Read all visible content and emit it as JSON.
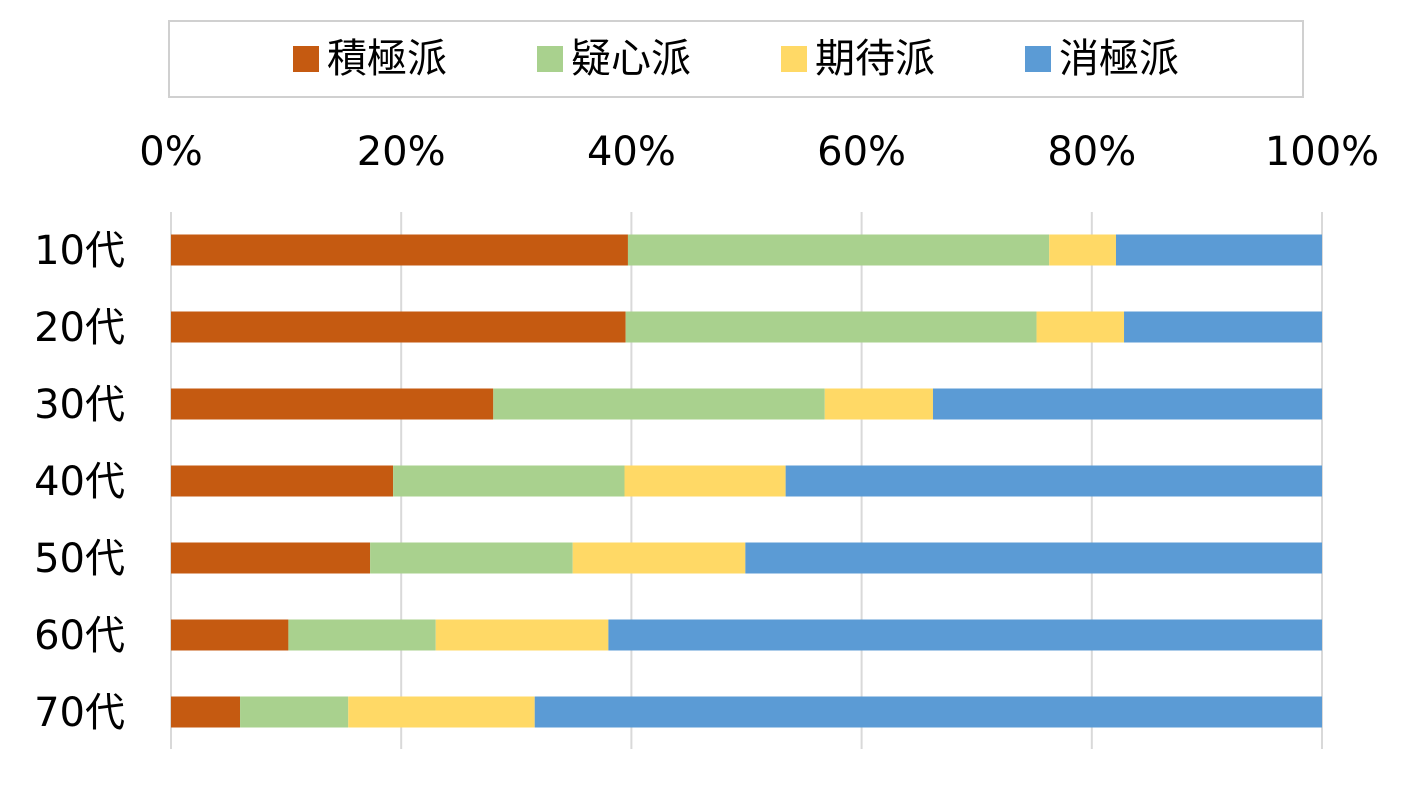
{
  "chart_data": {
    "type": "bar",
    "orientation": "horizontal",
    "stacked": true,
    "percent": true,
    "categories": [
      "10代",
      "20代",
      "30代",
      "40代",
      "50代",
      "60代",
      "70代"
    ],
    "series": [
      {
        "name": "積極派",
        "color": "#C55A11",
        "values": [
          39.7,
          39.5,
          28.0,
          19.3,
          17.3,
          10.2,
          6.0
        ]
      },
      {
        "name": "疑心派",
        "color": "#A9D18E",
        "values": [
          36.6,
          35.7,
          28.8,
          20.1,
          17.6,
          12.8,
          9.4
        ]
      },
      {
        "name": "期待派",
        "color": "#FFD966",
        "values": [
          5.8,
          7.6,
          9.4,
          14.0,
          15.0,
          15.0,
          16.2
        ]
      },
      {
        "name": "消極派",
        "color": "#5B9BD5",
        "values": [
          17.9,
          17.2,
          33.8,
          46.6,
          50.1,
          62.0,
          68.4
        ]
      }
    ],
    "xlim": [
      0,
      100
    ],
    "xticks": [
      "0%",
      "20%",
      "40%",
      "60%",
      "80%",
      "100%"
    ],
    "x_axis_position": "top",
    "legend_position": "top",
    "grid": true
  }
}
